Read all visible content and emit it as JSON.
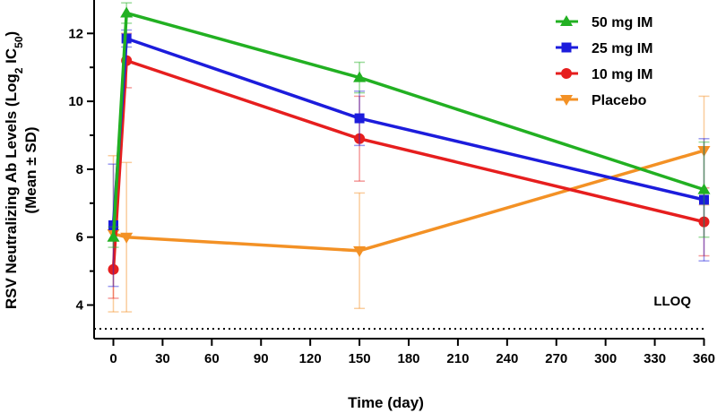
{
  "chart_data": {
    "type": "line",
    "title": "",
    "xlabel": "Time (day)",
    "ylabel_line1_pre": "RSV Neutralizing Ab Levels (Log",
    "ylabel_line1_sub2": "2",
    "ylabel_line1_mid": " IC",
    "ylabel_line1_sub50": "50",
    "ylabel_line1_post": ")",
    "ylabel_line2": "(Mean ± SD)",
    "xlim": [
      -15,
      360
    ],
    "ylim": [
      3.2,
      13
    ],
    "xticks": [
      0,
      30,
      60,
      90,
      120,
      150,
      180,
      210,
      240,
      270,
      300,
      330,
      360
    ],
    "yticks": [
      4,
      6,
      8,
      10,
      12
    ],
    "lloq": {
      "value": 3.3,
      "label": "LLOQ"
    },
    "legend_position": "top-right",
    "series": [
      {
        "name": "50 mg IM",
        "color": "#22b022",
        "marker": "triangle-up",
        "x": [
          0,
          8,
          150,
          360
        ],
        "y": [
          6.0,
          12.6,
          10.7,
          7.4
        ],
        "sd": [
          0.3,
          0.3,
          0.45,
          1.4
        ]
      },
      {
        "name": "25 mg IM",
        "color": "#1c1cdc",
        "marker": "square",
        "x": [
          0,
          8,
          150,
          360
        ],
        "y": [
          6.35,
          11.85,
          9.5,
          7.1
        ],
        "sd": [
          1.8,
          0.25,
          0.8,
          1.8
        ]
      },
      {
        "name": "10 mg IM",
        "color": "#e61e1e",
        "marker": "circle",
        "x": [
          0,
          8,
          150,
          360
        ],
        "y": [
          5.05,
          11.2,
          8.9,
          6.45
        ],
        "sd": [
          0.85,
          0.8,
          1.25,
          1.0
        ]
      },
      {
        "name": "Placebo",
        "color": "#f39125",
        "marker": "triangle-down",
        "x": [
          0,
          8,
          150,
          360
        ],
        "y": [
          6.1,
          6.0,
          5.6,
          8.55
        ],
        "sd": [
          2.3,
          2.2,
          1.7,
          1.6
        ]
      }
    ]
  }
}
